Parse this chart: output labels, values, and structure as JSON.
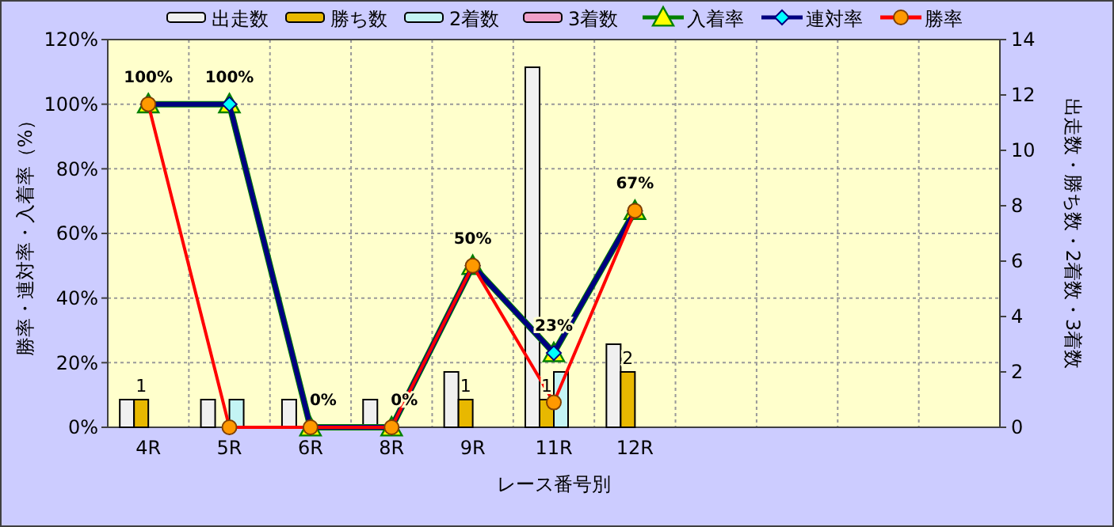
{
  "chart_data": {
    "type": "bar",
    "xlabel": "レース番号別",
    "ylabel": "勝率・連対率・入着率（%）",
    "y2label": "出走数・勝ち数・2着数・3着数",
    "categories": [
      "4R",
      "5R",
      "6R",
      "8R",
      "9R",
      "11R",
      "12R",
      null,
      null,
      null,
      null
    ],
    "series": [
      {
        "name": "出走数",
        "axis": "y2",
        "color": "#f0f0f0",
        "values": [
          1,
          1,
          1,
          1,
          2,
          13,
          3,
          null,
          null,
          null,
          null
        ]
      },
      {
        "name": "勝ち数",
        "axis": "y2",
        "color": "#e8b800",
        "values": [
          1,
          0,
          0,
          0,
          1,
          1,
          2,
          null,
          null,
          null,
          null
        ],
        "value_labels": [
          "1",
          null,
          null,
          null,
          "1",
          "1",
          "2",
          null,
          null,
          null,
          null
        ]
      },
      {
        "name": "2着数",
        "axis": "y2",
        "color": "#c4f4f4",
        "values": [
          0,
          1,
          0,
          0,
          0,
          2,
          0,
          null,
          null,
          null,
          null
        ]
      },
      {
        "name": "3着数",
        "axis": "y2",
        "color": "#f0a0c8",
        "values": [
          0,
          0,
          0,
          0,
          0,
          0,
          0,
          null,
          null,
          null,
          null
        ]
      },
      {
        "name": "入着率",
        "type": "line",
        "color": "#008000",
        "marker": "triangle",
        "line_style": "solid",
        "values": [
          100,
          100,
          0,
          0,
          50,
          23,
          67,
          null,
          null,
          null,
          null
        ],
        "value_labels": [
          "100%",
          "100%",
          "0%",
          "0%",
          "50%",
          "23%",
          "67%",
          null,
          null,
          null,
          null
        ]
      },
      {
        "name": "連対率",
        "type": "line",
        "color": "#000080",
        "marker": "diamond",
        "line_style": "solid",
        "values": [
          100,
          100,
          0,
          0,
          50,
          23,
          67,
          null,
          null,
          null,
          null
        ]
      },
      {
        "name": "勝率",
        "type": "line",
        "color": "#ff0000",
        "marker": "circle",
        "line_style": "solid",
        "values": [
          100,
          0,
          0,
          0,
          50,
          7.7,
          67,
          null,
          null,
          null,
          null
        ]
      }
    ],
    "ylim": [
      0,
      120
    ],
    "yticks": [
      {
        "value": 0,
        "label": "0%"
      },
      {
        "value": 20,
        "label": "20%"
      },
      {
        "value": 40,
        "label": "40%"
      },
      {
        "value": 60,
        "label": "60%"
      },
      {
        "value": 80,
        "label": "80%"
      },
      {
        "value": 100,
        "label": "100%"
      },
      {
        "value": 120,
        "label": "120%"
      }
    ],
    "y2lim": [
      0,
      14
    ],
    "y2ticks": [
      0,
      2,
      4,
      6,
      8,
      10,
      12,
      14
    ],
    "grid": true,
    "legend": "top"
  }
}
